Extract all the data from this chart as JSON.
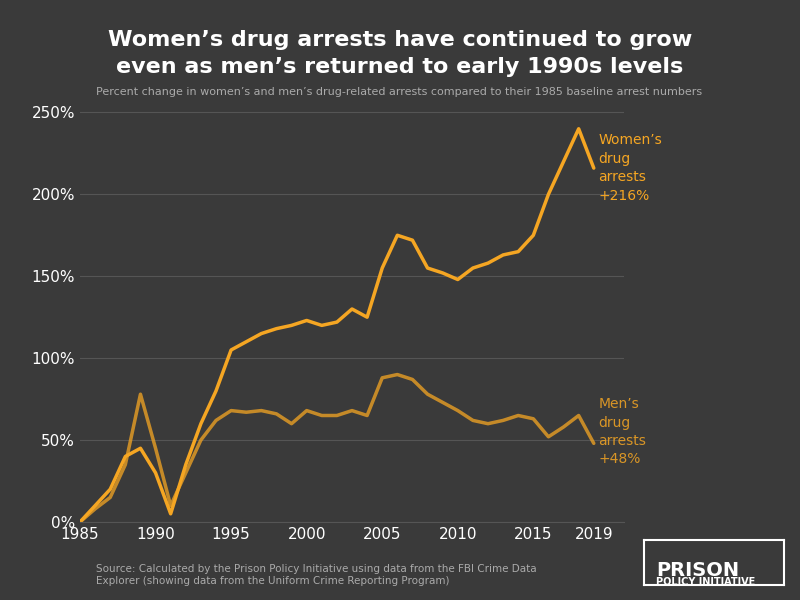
{
  "title_line1": "Women’s drug arrests have continued to grow",
  "title_line2": "even as men’s returned to early 1990s levels",
  "subtitle": "Percent change in women’s and men’s drug-related arrests compared to their 1985 baseline arrest numbers",
  "background_color": "#3a3a3a",
  "text_color": "#ffffff",
  "line_color": "#f5a623",
  "grid_color": "#555555",
  "source_text": "Source: Calculated by the Prison Policy Initiative using data from the FBI Crime Data\nExplorer (showing data from the Uniform Crime Reporting Program)",
  "logo_line1": "PRISON",
  "logo_line2": "POLICY INITIATIVE",
  "women_label": "Women’s\ndrug\narrests\n+216%",
  "men_label": "Men’s\ndrug\narrests\n+48%",
  "years": [
    1985,
    1986,
    1987,
    1988,
    1989,
    1990,
    1991,
    1992,
    1993,
    1994,
    1995,
    1996,
    1997,
    1998,
    1999,
    2000,
    2001,
    2002,
    2003,
    2004,
    2005,
    2006,
    2007,
    2008,
    2009,
    2010,
    2011,
    2012,
    2013,
    2014,
    2015,
    2016,
    2017,
    2018,
    2019
  ],
  "women_pct": [
    0,
    10,
    20,
    40,
    45,
    30,
    5,
    35,
    60,
    80,
    105,
    110,
    115,
    118,
    120,
    123,
    120,
    122,
    130,
    125,
    155,
    175,
    172,
    155,
    152,
    148,
    155,
    158,
    163,
    165,
    175,
    200,
    220,
    240,
    216
  ],
  "men_pct": [
    0,
    8,
    15,
    35,
    78,
    45,
    10,
    30,
    50,
    62,
    68,
    67,
    68,
    66,
    60,
    68,
    65,
    65,
    68,
    65,
    88,
    90,
    87,
    78,
    73,
    68,
    62,
    60,
    62,
    65,
    63,
    52,
    58,
    65,
    48
  ],
  "ylim": [
    0,
    260
  ],
  "yticks": [
    0,
    50,
    100,
    150,
    200,
    250
  ],
  "xticks": [
    1985,
    1990,
    1995,
    2000,
    2005,
    2010,
    2015,
    2019
  ]
}
